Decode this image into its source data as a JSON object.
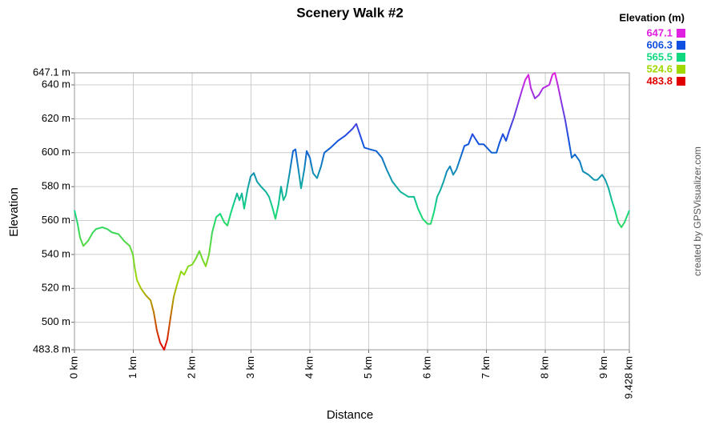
{
  "chart_data": {
    "type": "line",
    "title": "Scenery Walk #2",
    "x_label": "Distance",
    "y_label": "Elevation",
    "credit": "created by GPSVisualizer.com",
    "x": [
      0,
      0.054,
      0.095,
      0.15,
      0.231,
      0.313,
      0.367,
      0.476,
      0.558,
      0.639,
      0.748,
      0.844,
      0.939,
      0.993,
      1.02,
      1.061,
      1.129,
      1.211,
      1.293,
      1.347,
      1.401,
      1.456,
      1.524,
      1.578,
      1.633,
      1.687,
      1.741,
      1.81,
      1.864,
      1.932,
      2.0,
      2.054,
      2.122,
      2.177,
      2.231,
      2.286,
      2.34,
      2.408,
      2.476,
      2.544,
      2.599,
      2.653,
      2.707,
      2.762,
      2.803,
      2.844,
      2.884,
      2.939,
      2.993,
      3.048,
      3.102,
      3.17,
      3.252,
      3.306,
      3.361,
      3.415,
      3.469,
      3.51,
      3.551,
      3.592,
      3.66,
      3.714,
      3.755,
      3.81,
      3.85,
      3.905,
      3.946,
      4.0,
      4.054,
      4.122,
      4.19,
      4.245,
      4.354,
      4.476,
      4.599,
      4.721,
      4.789,
      4.857,
      4.925,
      5.02,
      5.129,
      5.224,
      5.306,
      5.401,
      5.537,
      5.673,
      5.769,
      5.837,
      5.918,
      6.0,
      6.054,
      6.109,
      6.163,
      6.218,
      6.272,
      6.327,
      6.381,
      6.435,
      6.49,
      6.558,
      6.626,
      6.694,
      6.762,
      6.816,
      6.871,
      6.952,
      7.007,
      7.088,
      7.17,
      7.224,
      7.279,
      7.333,
      7.388,
      7.469,
      7.537,
      7.605,
      7.66,
      7.714,
      7.755,
      7.823,
      7.891,
      7.959,
      8.014,
      8.068,
      8.122,
      8.163,
      8.218,
      8.272,
      8.34,
      8.395,
      8.449,
      8.503,
      8.585,
      8.639,
      8.735,
      8.83,
      8.884,
      8.966,
      9.02,
      9.075,
      9.129,
      9.184,
      9.238,
      9.293,
      9.347,
      9.428
    ],
    "values": [
      566,
      558,
      550,
      545,
      548,
      553,
      555,
      556,
      555,
      553,
      552,
      548,
      545,
      540,
      533,
      525,
      520,
      516,
      513,
      506,
      495,
      488,
      483.8,
      490,
      503,
      515,
      522,
      530,
      528,
      533,
      534,
      537,
      542,
      537,
      533,
      540,
      553,
      562,
      564,
      559,
      557,
      564,
      570,
      576,
      572,
      576,
      567,
      578,
      586,
      588,
      583,
      580,
      577,
      574,
      568,
      561,
      570,
      580,
      572,
      575,
      589,
      601,
      602,
      589,
      579,
      590,
      601,
      597,
      588,
      585,
      592,
      600,
      603,
      607,
      610,
      614,
      617,
      610,
      603,
      602,
      601,
      597,
      590,
      583,
      577,
      574,
      574,
      567,
      561,
      558,
      558,
      565,
      574,
      578,
      583,
      589,
      592,
      587,
      590,
      597,
      604,
      605,
      611,
      608,
      605,
      605,
      603,
      600,
      600,
      606,
      611,
      607,
      613,
      621,
      629,
      637,
      643,
      646,
      638,
      632,
      634,
      638,
      639,
      640,
      646,
      647.1,
      639,
      630,
      619,
      608,
      597,
      599,
      595,
      589,
      587,
      584,
      584,
      587,
      584,
      579,
      572,
      566,
      559,
      556,
      559,
      566
    ],
    "xlim": [
      0,
      9.428
    ],
    "xticks": [
      {
        "value": 0,
        "label": "0 km"
      },
      {
        "value": 1,
        "label": "1 km"
      },
      {
        "value": 2,
        "label": "2 km"
      },
      {
        "value": 3,
        "label": "3 km"
      },
      {
        "value": 4,
        "label": "4 km"
      },
      {
        "value": 5,
        "label": "5 km"
      },
      {
        "value": 6,
        "label": "6 km"
      },
      {
        "value": 7,
        "label": "7 km"
      },
      {
        "value": 8,
        "label": "8 km"
      },
      {
        "value": 9,
        "label": "9 km"
      },
      {
        "value": 9.428,
        "label": "9.428 km"
      }
    ],
    "ylim": [
      483.8,
      647.1
    ],
    "yticks": [
      {
        "value": 483.8,
        "label": "483.8 m"
      },
      {
        "value": 500,
        "label": "500 m"
      },
      {
        "value": 520,
        "label": "520 m"
      },
      {
        "value": 540,
        "label": "540 m"
      },
      {
        "value": 560,
        "label": "560 m"
      },
      {
        "value": 580,
        "label": "580 m"
      },
      {
        "value": 600,
        "label": "600 m"
      },
      {
        "value": 620,
        "label": "620 m"
      },
      {
        "value": 640,
        "label": "640 m"
      },
      {
        "value": 647.1,
        "label": "647.1 m"
      }
    ],
    "grid": true,
    "legend": {
      "title": "Elevation (m)",
      "entries": [
        {
          "value": 647.1,
          "color": "#e020e0"
        },
        {
          "value": 606.3,
          "color": "#1050e0"
        },
        {
          "value": 565.5,
          "color": "#10d880"
        },
        {
          "value": 524.6,
          "color": "#a0d800"
        },
        {
          "value": 483.8,
          "color": "#e00000"
        }
      ]
    }
  }
}
